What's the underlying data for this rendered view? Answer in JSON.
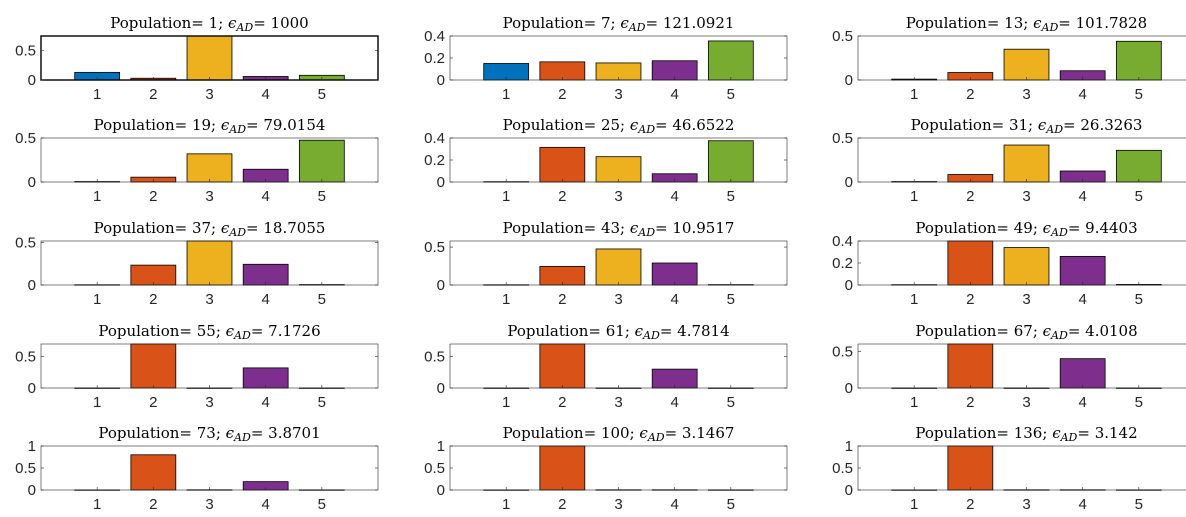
{
  "chart_data": [
    {
      "type": "bar",
      "title": {
        "pre": "Population= ",
        "n": "1",
        "mid": "; ",
        "eps": "ϵ",
        "sub": "AD",
        "eq": "= ",
        "val": "1000"
      },
      "categories": [
        "1",
        "2",
        "3",
        "4",
        "5"
      ],
      "values": [
        0.13,
        0.03,
        0.75,
        0.06,
        0.08
      ],
      "ylim": [
        0,
        0.75
      ],
      "yticks": [
        0,
        0.5
      ],
      "ytick_labels": [
        "0",
        "0.5"
      ],
      "xlim": [
        0,
        6
      ]
    },
    {
      "type": "bar",
      "title": {
        "pre": "Population= ",
        "n": "7",
        "mid": "; ",
        "eps": "ϵ",
        "sub": "AD",
        "eq": "= ",
        "val": "121.0921"
      },
      "categories": [
        "1",
        "2",
        "3",
        "4",
        "5"
      ],
      "values": [
        0.15,
        0.165,
        0.155,
        0.175,
        0.355
      ],
      "ylim": [
        0,
        0.4
      ],
      "yticks": [
        0,
        0.2,
        0.4
      ],
      "ytick_labels": [
        "0",
        "0.2",
        "0.4"
      ],
      "xlim": [
        0,
        6
      ]
    },
    {
      "type": "bar",
      "title": {
        "pre": "Population= ",
        "n": "13",
        "mid": "; ",
        "eps": "ϵ",
        "sub": "AD",
        "eq": "= ",
        "val": "101.7828"
      },
      "categories": [
        "1",
        "2",
        "3",
        "4",
        "5"
      ],
      "values": [
        0.01,
        0.085,
        0.35,
        0.105,
        0.44
      ],
      "ylim": [
        0,
        0.5
      ],
      "yticks": [
        0,
        0.5
      ],
      "ytick_labels": [
        "0",
        "0.5"
      ],
      "xlim": [
        0,
        6
      ]
    },
    {
      "type": "bar",
      "title": {
        "pre": "Population= ",
        "n": "19",
        "mid": "; ",
        "eps": "ϵ",
        "sub": "AD",
        "eq": "= ",
        "val": "79.0154"
      },
      "categories": [
        "1",
        "2",
        "3",
        "4",
        "5"
      ],
      "values": [
        0.005,
        0.055,
        0.32,
        0.145,
        0.475
      ],
      "ylim": [
        0,
        0.5
      ],
      "yticks": [
        0,
        0.5
      ],
      "ytick_labels": [
        "0",
        "0.5"
      ],
      "xlim": [
        0,
        6
      ]
    },
    {
      "type": "bar",
      "title": {
        "pre": "Population= ",
        "n": "25",
        "mid": "; ",
        "eps": "ϵ",
        "sub": "AD",
        "eq": "= ",
        "val": "46.6522"
      },
      "categories": [
        "1",
        "2",
        "3",
        "4",
        "5"
      ],
      "values": [
        0.003,
        0.315,
        0.23,
        0.075,
        0.375
      ],
      "ylim": [
        0,
        0.4
      ],
      "yticks": [
        0,
        0.2,
        0.4
      ],
      "ytick_labels": [
        "0",
        "0.2",
        "0.4"
      ],
      "xlim": [
        0,
        6
      ]
    },
    {
      "type": "bar",
      "title": {
        "pre": "Population= ",
        "n": "31",
        "mid": "; ",
        "eps": "ϵ",
        "sub": "AD",
        "eq": "= ",
        "val": "26.3263"
      },
      "categories": [
        "1",
        "2",
        "3",
        "4",
        "5"
      ],
      "values": [
        0.005,
        0.085,
        0.42,
        0.125,
        0.36
      ],
      "ylim": [
        0,
        0.5
      ],
      "yticks": [
        0,
        0.5
      ],
      "ytick_labels": [
        "0",
        "0.5"
      ],
      "xlim": [
        0,
        6
      ]
    },
    {
      "type": "bar",
      "title": {
        "pre": "Population= ",
        "n": "37",
        "mid": "; ",
        "eps": "ϵ",
        "sub": "AD",
        "eq": "= ",
        "val": "18.7055"
      },
      "categories": [
        "1",
        "2",
        "3",
        "4",
        "5"
      ],
      "values": [
        0.003,
        0.235,
        0.52,
        0.245,
        0.005
      ],
      "ylim": [
        0,
        0.52
      ],
      "yticks": [
        0,
        0.5
      ],
      "ytick_labels": [
        "0",
        "0.5"
      ],
      "xlim": [
        0,
        6
      ]
    },
    {
      "type": "bar",
      "title": {
        "pre": "Population= ",
        "n": "43",
        "mid": "; ",
        "eps": "ϵ",
        "sub": "AD",
        "eq": "= ",
        "val": "10.9517"
      },
      "categories": [
        "1",
        "2",
        "3",
        "4",
        "5"
      ],
      "values": [
        0.003,
        0.245,
        0.475,
        0.29,
        0.005
      ],
      "ylim": [
        0,
        0.58
      ],
      "yticks": [
        0,
        0.5
      ],
      "ytick_labels": [
        "0",
        "0.5"
      ],
      "xlim": [
        0,
        6
      ]
    },
    {
      "type": "bar",
      "title": {
        "pre": "Population= ",
        "n": "49",
        "mid": "; ",
        "eps": "ϵ",
        "sub": "AD",
        "eq": "= ",
        "val": "9.4403"
      },
      "categories": [
        "1",
        "2",
        "3",
        "4",
        "5"
      ],
      "values": [
        0.003,
        0.4,
        0.34,
        0.26,
        0.005
      ],
      "ylim": [
        0,
        0.4
      ],
      "yticks": [
        0,
        0.2,
        0.4
      ],
      "ytick_labels": [
        "0",
        "0.2",
        "0.4"
      ],
      "xlim": [
        0,
        6
      ]
    },
    {
      "type": "bar",
      "title": {
        "pre": "Population= ",
        "n": "55",
        "mid": "; ",
        "eps": "ϵ",
        "sub": "AD",
        "eq": "= ",
        "val": "7.1726"
      },
      "categories": [
        "1",
        "2",
        "3",
        "4",
        "5"
      ],
      "values": [
        0,
        0.7,
        0,
        0.32,
        0
      ],
      "ylim": [
        0,
        0.7
      ],
      "yticks": [
        0,
        0.5
      ],
      "ytick_labels": [
        "0",
        "0.5"
      ],
      "xlim": [
        0,
        6
      ]
    },
    {
      "type": "bar",
      "title": {
        "pre": "Population= ",
        "n": "61",
        "mid": "; ",
        "eps": "ϵ",
        "sub": "AD",
        "eq": "= ",
        "val": "4.7814"
      },
      "categories": [
        "1",
        "2",
        "3",
        "4",
        "5"
      ],
      "values": [
        0,
        0.7,
        0,
        0.3,
        0
      ],
      "ylim": [
        0,
        0.7
      ],
      "yticks": [
        0,
        0.5
      ],
      "ytick_labels": [
        "0",
        "0.5"
      ],
      "xlim": [
        0,
        6
      ]
    },
    {
      "type": "bar",
      "title": {
        "pre": "Population= ",
        "n": "67",
        "mid": "; ",
        "eps": "ϵ",
        "sub": "AD",
        "eq": "= ",
        "val": "4.0108"
      },
      "categories": [
        "1",
        "2",
        "3",
        "4",
        "5"
      ],
      "values": [
        0,
        0.6,
        0,
        0.4,
        0
      ],
      "ylim": [
        0,
        0.6
      ],
      "yticks": [
        0,
        0.5
      ],
      "ytick_labels": [
        "0",
        "0.5"
      ],
      "xlim": [
        0,
        6
      ]
    },
    {
      "type": "bar",
      "title": {
        "pre": "Population= ",
        "n": "73",
        "mid": "; ",
        "eps": "ϵ",
        "sub": "AD",
        "eq": "= ",
        "val": "3.8701"
      },
      "categories": [
        "1",
        "2",
        "3",
        "4",
        "5"
      ],
      "values": [
        0.002,
        0.8,
        0.005,
        0.19,
        0.003
      ],
      "ylim": [
        0,
        1
      ],
      "yticks": [
        0,
        0.5,
        1
      ],
      "ytick_labels": [
        "0",
        "0.5",
        "1"
      ],
      "xlim": [
        0,
        6
      ]
    },
    {
      "type": "bar",
      "title": {
        "pre": "Population= ",
        "n": "100",
        "mid": "; ",
        "eps": "ϵ",
        "sub": "AD",
        "eq": "= ",
        "val": "3.1467"
      },
      "categories": [
        "1",
        "2",
        "3",
        "4",
        "5"
      ],
      "values": [
        0.002,
        1,
        0.005,
        0.005,
        0.003
      ],
      "ylim": [
        0,
        1
      ],
      "yticks": [
        0,
        0.5,
        1
      ],
      "ytick_labels": [
        "0",
        "0.5",
        "1"
      ],
      "xlim": [
        0,
        6
      ]
    },
    {
      "type": "bar",
      "title": {
        "pre": "Population= ",
        "n": "136",
        "mid": "; ",
        "eps": "ϵ",
        "sub": "AD",
        "eq": "= ",
        "val": "3.142"
      },
      "categories": [
        "1",
        "2",
        "3",
        "4",
        "5"
      ],
      "values": [
        0.002,
        1,
        0.005,
        0.005,
        0.003
      ],
      "ylim": [
        0,
        1
      ],
      "yticks": [
        0,
        0.5,
        1
      ],
      "ytick_labels": [
        "0",
        "0.5",
        "1"
      ],
      "xlim": [
        0,
        6
      ]
    }
  ],
  "colors": {
    "bar_1": "#0072BD",
    "bar_2": "#D95319",
    "bar_3": "#EDB120",
    "bar_4": "#7E2F8E",
    "bar_5": "#77AC30",
    "axes": "#262626",
    "frame": "#000000",
    "bar_edge": "#000000"
  }
}
